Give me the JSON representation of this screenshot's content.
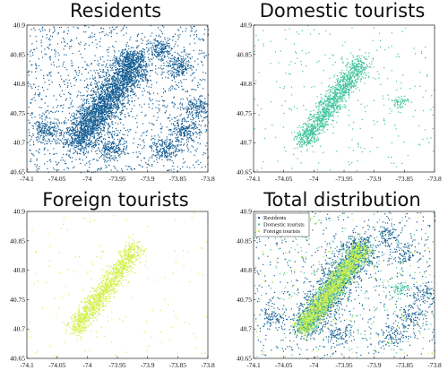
{
  "colors": {
    "residents": "#155e93",
    "domestic": "#3ec49a",
    "foreign": "#d2f04a"
  },
  "chart_data": [
    {
      "type": "scatter",
      "title": "Residents",
      "xlim": [
        -74.1,
        -73.8
      ],
      "ylim": [
        40.65,
        40.9
      ],
      "xticks": [
        "-74.1",
        "-74.05",
        "-74",
        "-73.95",
        "-73.9",
        "-73.85",
        "-73.8"
      ],
      "yticks": [
        "40.65",
        "40.7",
        "40.75",
        "40.8",
        "40.85",
        "40.9"
      ],
      "series": [
        {
          "color": "#155e93",
          "density": "very high"
        }
      ]
    },
    {
      "type": "scatter",
      "title": "Domestic tourists",
      "xlim": [
        -74.1,
        -73.8
      ],
      "ylim": [
        40.65,
        40.9
      ],
      "xticks": [
        "-74.1",
        "-74.05",
        "-74",
        "-73.95",
        "-73.9",
        "-73.85",
        "-73.8"
      ],
      "yticks": [
        "40.65",
        "40.7",
        "40.75",
        "40.8",
        "40.85",
        "40.9"
      ],
      "series": [
        {
          "color": "#3ec49a",
          "density": "medium"
        }
      ]
    },
    {
      "type": "scatter",
      "title": "Foreign tourists",
      "xlim": [
        -74.1,
        -73.8
      ],
      "ylim": [
        40.65,
        40.9
      ],
      "xticks": [
        "-74.1",
        "-74.05",
        "-74",
        "-73.95",
        "-73.9",
        "-73.85",
        "-73.8"
      ],
      "yticks": [
        "40.65",
        "40.7",
        "40.75",
        "40.8",
        "40.85",
        "40.9"
      ],
      "series": [
        {
          "color": "#d2f04a",
          "density": "medium"
        }
      ]
    },
    {
      "type": "scatter",
      "title": "Total distribution",
      "xlim": [
        -74.1,
        -73.8
      ],
      "ylim": [
        40.65,
        40.9
      ],
      "xticks": [
        "-74.1",
        "-74.05",
        "-74",
        "-73.95",
        "-73.9",
        "-73.85",
        "-73.8"
      ],
      "yticks": [
        "40.65",
        "40.7",
        "40.75",
        "40.8",
        "40.85",
        "40.9"
      ],
      "legend": [
        "Residents",
        "Domestic tourists",
        "Foreign tourists"
      ],
      "legend_position": "top-left",
      "series": [
        {
          "name": "Residents",
          "color": "#155e93"
        },
        {
          "name": "Domestic tourists",
          "color": "#3ec49a"
        },
        {
          "name": "Foreign tourists",
          "color": "#d2f04a"
        }
      ]
    }
  ]
}
